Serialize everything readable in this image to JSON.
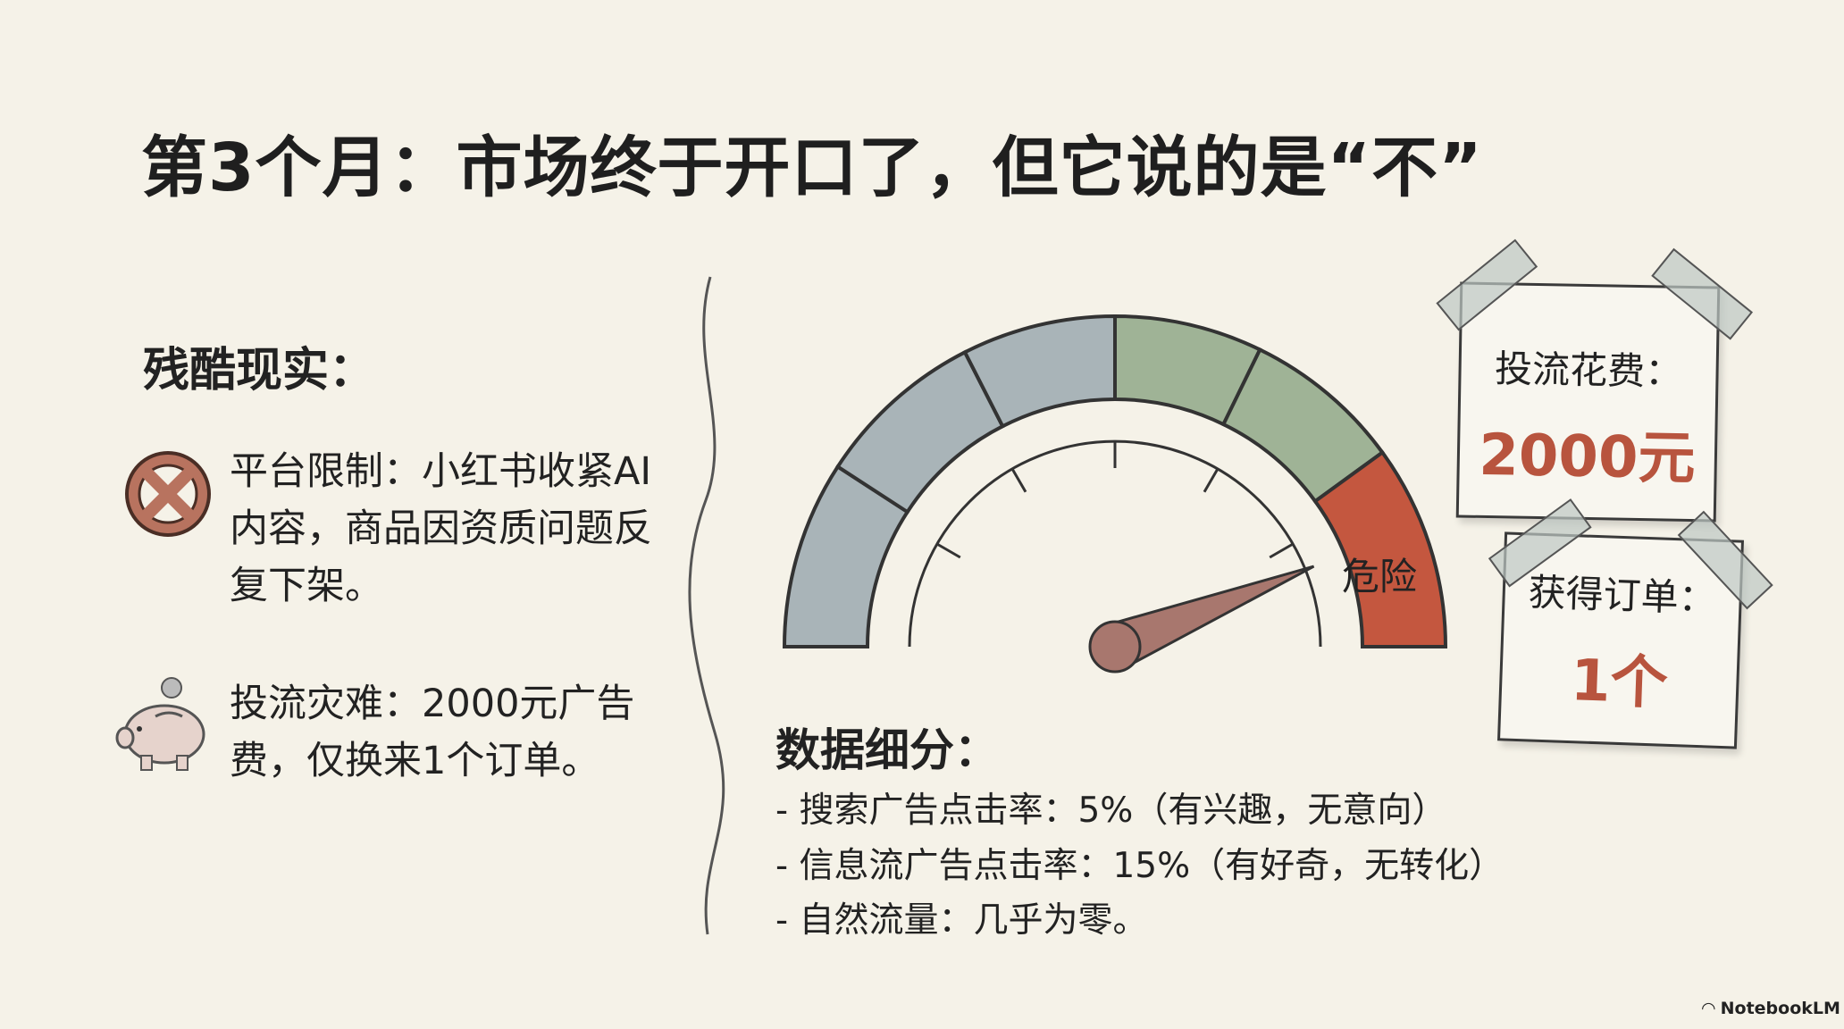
{
  "title": "第3个月：市场终于开口了，但它说的是“不”",
  "left": {
    "heading": "残酷现实：",
    "items": [
      {
        "icon": "prohibited-x-icon",
        "text": "平台限制：小红书收紧AI内容，商品因资质问题反复下架。"
      },
      {
        "icon": "piggy-bank-icon",
        "text": "投流灾难：2000元广告费，仅换来1个订单。"
      }
    ]
  },
  "gauge": {
    "danger_label": "危险",
    "colors": {
      "gray": "#a9b4b8",
      "green": "#9fb396",
      "red": "#c4573f",
      "needle": "#a8776e"
    }
  },
  "notes": [
    {
      "label": "投流花费：",
      "value": "2000元"
    },
    {
      "label": "获得订单：",
      "value": "1个"
    }
  ],
  "data_section": {
    "heading": "数据细分：",
    "lines": [
      "- 搜索广告点击率：5%（有兴趣，无意向）",
      "- 信息流广告点击率：15%（有好奇，无转化）",
      "- 自然流量：几乎为零。"
    ]
  },
  "footer": {
    "brand": "NotebookLM"
  },
  "accent_color": "#b8543e"
}
